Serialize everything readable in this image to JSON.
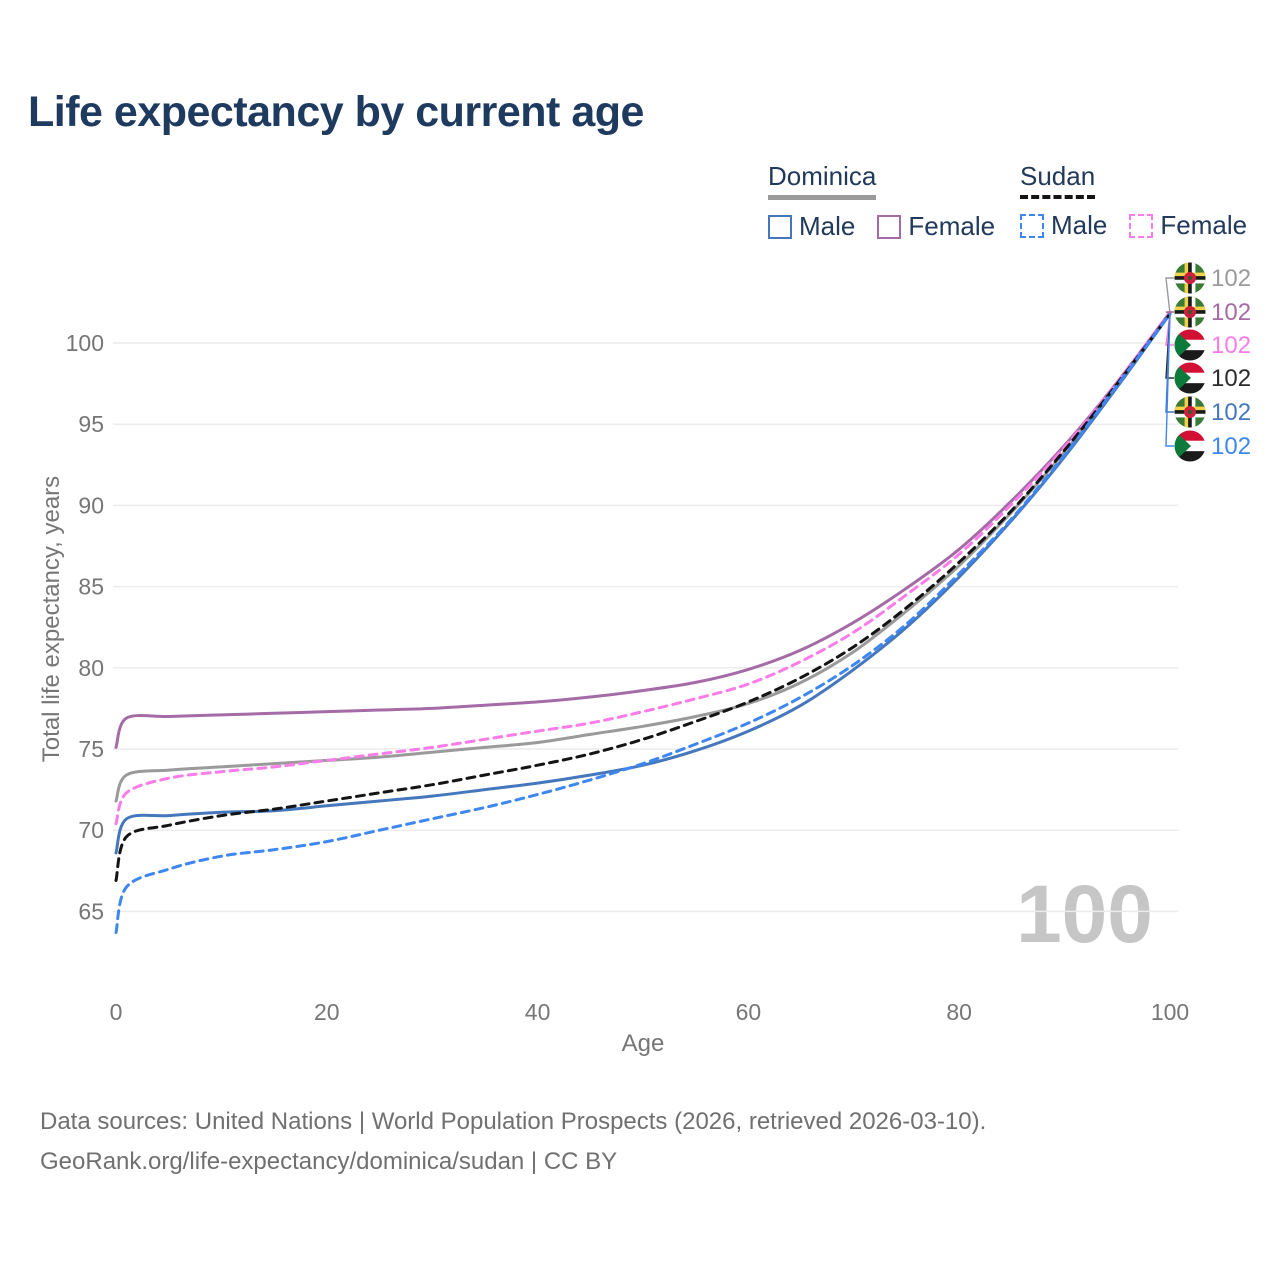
{
  "title": "Life expectancy by current age",
  "legend": {
    "groups": [
      {
        "label": "Dominica",
        "series": "dominica",
        "items": [
          {
            "label": "Male",
            "series": "dominica-male"
          },
          {
            "label": "Female",
            "series": "dominica-female"
          }
        ]
      },
      {
        "label": "Sudan",
        "series": "sudan",
        "items": [
          {
            "label": "Male",
            "series": "sudan-male"
          },
          {
            "label": "Female",
            "series": "sudan-female"
          }
        ]
      }
    ]
  },
  "y_axis": {
    "label": "Total life expectancy, years",
    "ticks": [
      65,
      70,
      75,
      80,
      85,
      90,
      95,
      100
    ]
  },
  "x_axis": {
    "label": "Age",
    "ticks": [
      0,
      20,
      40,
      60,
      80,
      100
    ]
  },
  "right_labels": [
    {
      "flag": "dominica",
      "value": "102",
      "color": "#9a9a9a",
      "series": "Dominica"
    },
    {
      "flag": "dominica",
      "value": "102",
      "color": "#a56ba6",
      "series": "Dominica Female"
    },
    {
      "flag": "sudan",
      "value": "102",
      "color": "#f97ce9",
      "series": "Sudan Female"
    },
    {
      "flag": "sudan",
      "value": "102",
      "color": "#2b2b2b",
      "series": "Sudan"
    },
    {
      "flag": "dominica",
      "value": "102",
      "color": "#4577bd",
      "series": "Dominica Male"
    },
    {
      "flag": "sudan",
      "value": "102",
      "color": "#3f87f0",
      "series": "Sudan Male"
    }
  ],
  "watermark": "100",
  "footer": {
    "line1": "Data sources: United Nations | World Population Prospects (2026, retrieved 2026-03-10).",
    "line2": "GeoRank.org/life-expectancy/dominica/sudan | CC BY"
  },
  "colors": {
    "title": "#1e3a5f",
    "axis_text": "#767676",
    "grid": "#ececec",
    "footer": "#707070",
    "watermark": "#c6c6c6",
    "background": "#ffffff",
    "legend_text": "#21395a"
  },
  "chart_data": {
    "type": "line",
    "title": "Life expectancy by current age",
    "xlabel": "Age",
    "ylabel": "Total life expectancy, years",
    "xlim": [
      0,
      100
    ],
    "ylim": [
      62.5,
      103
    ],
    "grid": "horizontal",
    "legend_position": "top-right",
    "x": [
      0,
      1,
      5,
      10,
      15,
      20,
      25,
      30,
      35,
      40,
      45,
      50,
      55,
      60,
      65,
      70,
      75,
      80,
      85,
      90,
      95,
      100
    ],
    "series": [
      {
        "id": "dominica",
        "name": "Dominica (both sexes)",
        "country": "Dominica",
        "sex": "both",
        "color": "#9a9a9a",
        "dash": false,
        "values": [
          71.8,
          73.4,
          73.7,
          73.9,
          74.1,
          74.3,
          74.5,
          74.8,
          75.1,
          75.4,
          75.9,
          76.4,
          77.0,
          77.8,
          79.1,
          81.0,
          83.5,
          86.3,
          89.6,
          93.3,
          97.4,
          101.8
        ]
      },
      {
        "id": "dominica-female",
        "name": "Dominica Female",
        "country": "Dominica",
        "sex": "female",
        "color": "#a56ba6",
        "dash": false,
        "values": [
          75.1,
          76.9,
          77.0,
          77.1,
          77.2,
          77.3,
          77.4,
          77.5,
          77.7,
          77.9,
          78.2,
          78.6,
          79.1,
          79.9,
          81.1,
          82.8,
          84.9,
          87.3,
          90.3,
          93.7,
          97.6,
          101.9
        ]
      },
      {
        "id": "dominica-male",
        "name": "Dominica Male",
        "country": "Dominica",
        "sex": "male",
        "color": "#4577bd",
        "dash": false,
        "values": [
          68.6,
          70.7,
          70.9,
          71.1,
          71.2,
          71.5,
          71.8,
          72.1,
          72.5,
          72.9,
          73.4,
          74.0,
          74.9,
          76.1,
          77.7,
          79.9,
          82.5,
          85.6,
          89.1,
          93.0,
          97.3,
          101.8
        ]
      },
      {
        "id": "sudan-female",
        "name": "Sudan Female",
        "country": "Sudan",
        "sex": "female",
        "color": "#f97ce9",
        "dash": true,
        "values": [
          70.4,
          72.3,
          73.2,
          73.6,
          73.9,
          74.3,
          74.7,
          75.1,
          75.6,
          76.1,
          76.6,
          77.3,
          78.1,
          79.0,
          80.4,
          82.2,
          84.5,
          87.0,
          90.1,
          93.6,
          97.6,
          101.9
        ]
      },
      {
        "id": "sudan",
        "name": "Sudan (both sexes)",
        "country": "Sudan",
        "sex": "both",
        "color": "#141414",
        "dash": true,
        "values": [
          66.9,
          69.6,
          70.3,
          70.9,
          71.3,
          71.8,
          72.3,
          72.8,
          73.4,
          74.0,
          74.7,
          75.6,
          76.7,
          77.9,
          79.4,
          81.3,
          83.7,
          86.5,
          89.7,
          93.4,
          97.5,
          101.8
        ]
      },
      {
        "id": "sudan-male",
        "name": "Sudan Male",
        "country": "Sudan",
        "sex": "male",
        "color": "#3f87f0",
        "dash": true,
        "values": [
          63.7,
          66.5,
          67.6,
          68.4,
          68.8,
          69.3,
          70.0,
          70.7,
          71.4,
          72.2,
          73.1,
          74.1,
          75.3,
          76.6,
          78.2,
          80.2,
          82.7,
          85.8,
          89.2,
          93.1,
          97.4,
          101.8
        ]
      }
    ]
  }
}
